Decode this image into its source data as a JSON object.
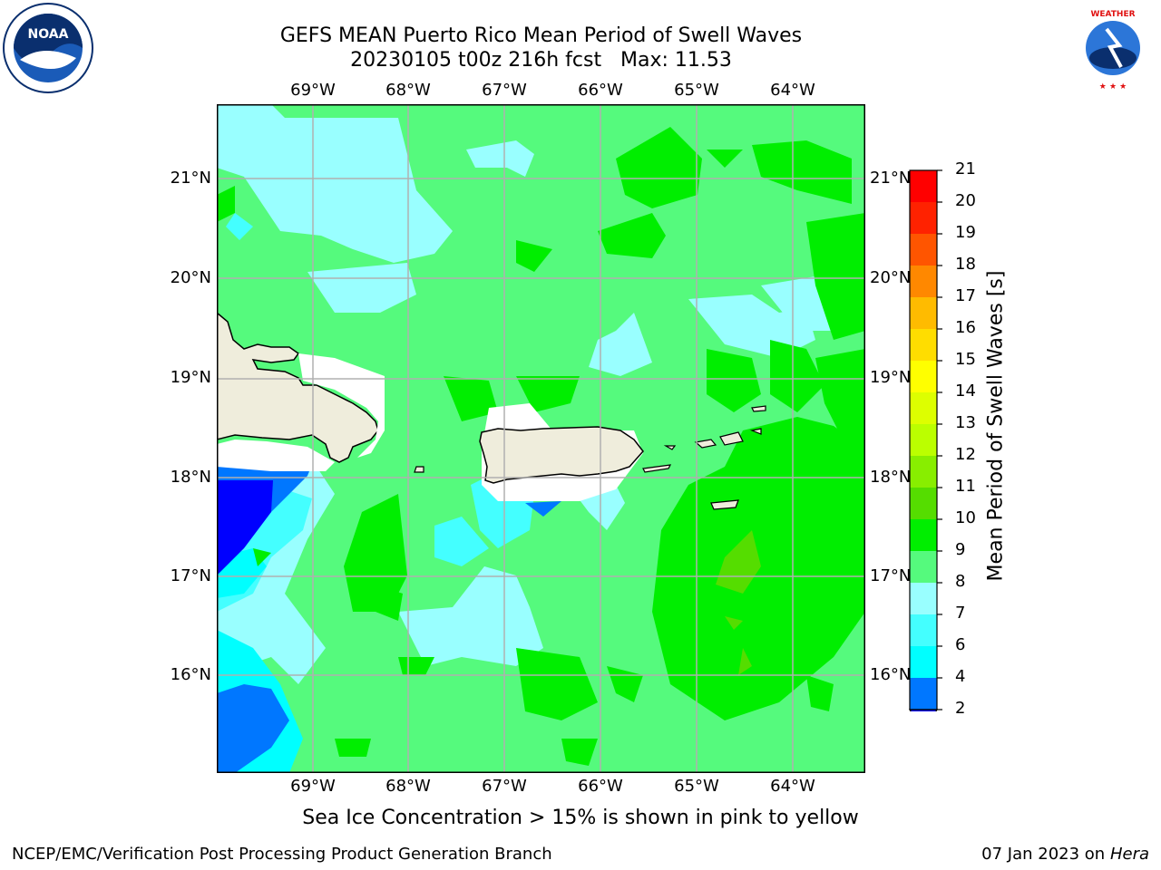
{
  "header": {
    "title_line1": "GEFS MEAN Puerto Rico Mean Period of Swell Waves",
    "title_line2": "20230105 t00z 216h fcst   Max: 11.53"
  },
  "logos": {
    "left_icon": "noaa-logo-icon",
    "left_text": "NOAA",
    "right_icon": "national-weather-service-logo-icon",
    "right_text": "NATIONAL WEATHER SERVICE"
  },
  "map": {
    "lon_labels": [
      "69°W",
      "68°W",
      "67°W",
      "66°W",
      "65°W",
      "64°W"
    ],
    "lat_labels": [
      "21°N",
      "20°N",
      "19°N",
      "18°N",
      "17°N",
      "16°N"
    ],
    "extent": {
      "lon_min": -70.0,
      "lon_max": -63.25,
      "lat_min": 15.0,
      "lat_max": 21.75
    },
    "ocean_background_color": "#55fa7d",
    "land_color": "#efeddc",
    "grid": true
  },
  "colorbar": {
    "label": "Mean Period of Swell Waves [s]",
    "ticks": [
      "2",
      "4",
      "6",
      "7",
      "8",
      "9",
      "10",
      "11",
      "12",
      "13",
      "14",
      "15",
      "16",
      "17",
      "18",
      "19",
      "20",
      "21"
    ],
    "colors": [
      "#0000ff",
      "#0077ff",
      "#00ffff",
      "#44ffff",
      "#99ffff",
      "#55fa7d",
      "#00ee00",
      "#55dd00",
      "#88ee00",
      "#bbff00",
      "#ddff00",
      "#ffff00",
      "#ffdd00",
      "#ffbb00",
      "#ff8800",
      "#ff5500",
      "#ff2200",
      "#ff0000"
    ]
  },
  "footer": {
    "ice_note": "Sea Ice Concentration > 15% is shown in pink to yellow",
    "left": "NCEP/EMC/Verification Post Processing Product Generation Branch",
    "right_date": "07 Jan 2023 on ",
    "right_host": "Hera"
  }
}
